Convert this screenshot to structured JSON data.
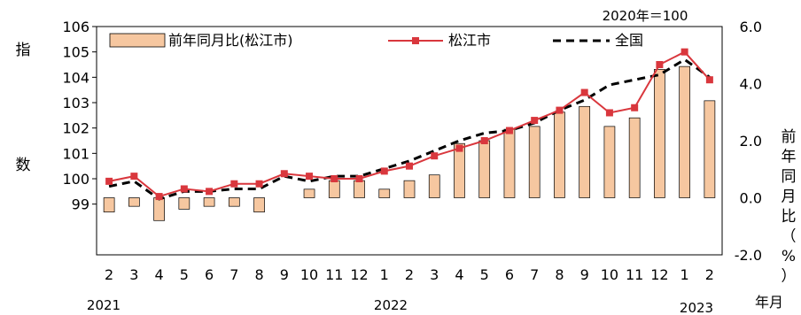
{
  "chart_data": {
    "type": "bar+line",
    "note": "2020年＝100",
    "categories": [
      "2",
      "3",
      "4",
      "5",
      "6",
      "7",
      "8",
      "9",
      "10",
      "11",
      "12",
      "1",
      "2",
      "3",
      "4",
      "5",
      "6",
      "7",
      "8",
      "9",
      "10",
      "11",
      "12",
      "1",
      "2"
    ],
    "year_labels": [
      "2021",
      "2022",
      "2023"
    ],
    "left_axis_label": "指数",
    "right_axis_label": "前年同月比（%）",
    "x_axis_unit": "年月",
    "left_axis": {
      "ticks": [
        99,
        100,
        101,
        102,
        103,
        104,
        105,
        106
      ],
      "range": [
        97.0,
        106
      ]
    },
    "right_axis": {
      "ticks": [
        "-2.0",
        "0.0",
        "2.0",
        "4.0",
        "6.0"
      ],
      "range": [
        -2.0,
        6.0
      ]
    },
    "series": [
      {
        "name": "前年同月比(松江市)",
        "type": "bar",
        "axis": "right",
        "color": "#f6c7a0",
        "values": [
          -0.5,
          -0.3,
          -0.8,
          -0.4,
          -0.3,
          -0.3,
          -0.5,
          0,
          0.3,
          0.6,
          0.6,
          0.3,
          0.6,
          0.8,
          1.9,
          2.0,
          2.4,
          2.5,
          3.0,
          3.2,
          2.5,
          2.8,
          4.5,
          4.6,
          3.4
        ]
      },
      {
        "name": "松江市",
        "type": "line",
        "axis": "left",
        "color": "#d9373d",
        "values": [
          99.9,
          100.1,
          99.3,
          99.6,
          99.5,
          99.8,
          99.8,
          100.2,
          100.1,
          100.0,
          100.0,
          100.3,
          100.5,
          100.9,
          101.2,
          101.5,
          101.9,
          102.3,
          102.7,
          103.4,
          102.6,
          102.8,
          104.5,
          105.0,
          103.9
        ]
      },
      {
        "name": "全国",
        "type": "line",
        "dashed": true,
        "axis": "left",
        "color": "#000000",
        "values": [
          99.7,
          99.9,
          99.2,
          99.5,
          99.5,
          99.6,
          99.6,
          100.1,
          99.9,
          100.1,
          100.1,
          100.4,
          100.7,
          101.1,
          101.5,
          101.8,
          101.9,
          102.2,
          102.7,
          103.1,
          103.7,
          103.9,
          104.1,
          104.7,
          104.0
        ]
      }
    ]
  }
}
